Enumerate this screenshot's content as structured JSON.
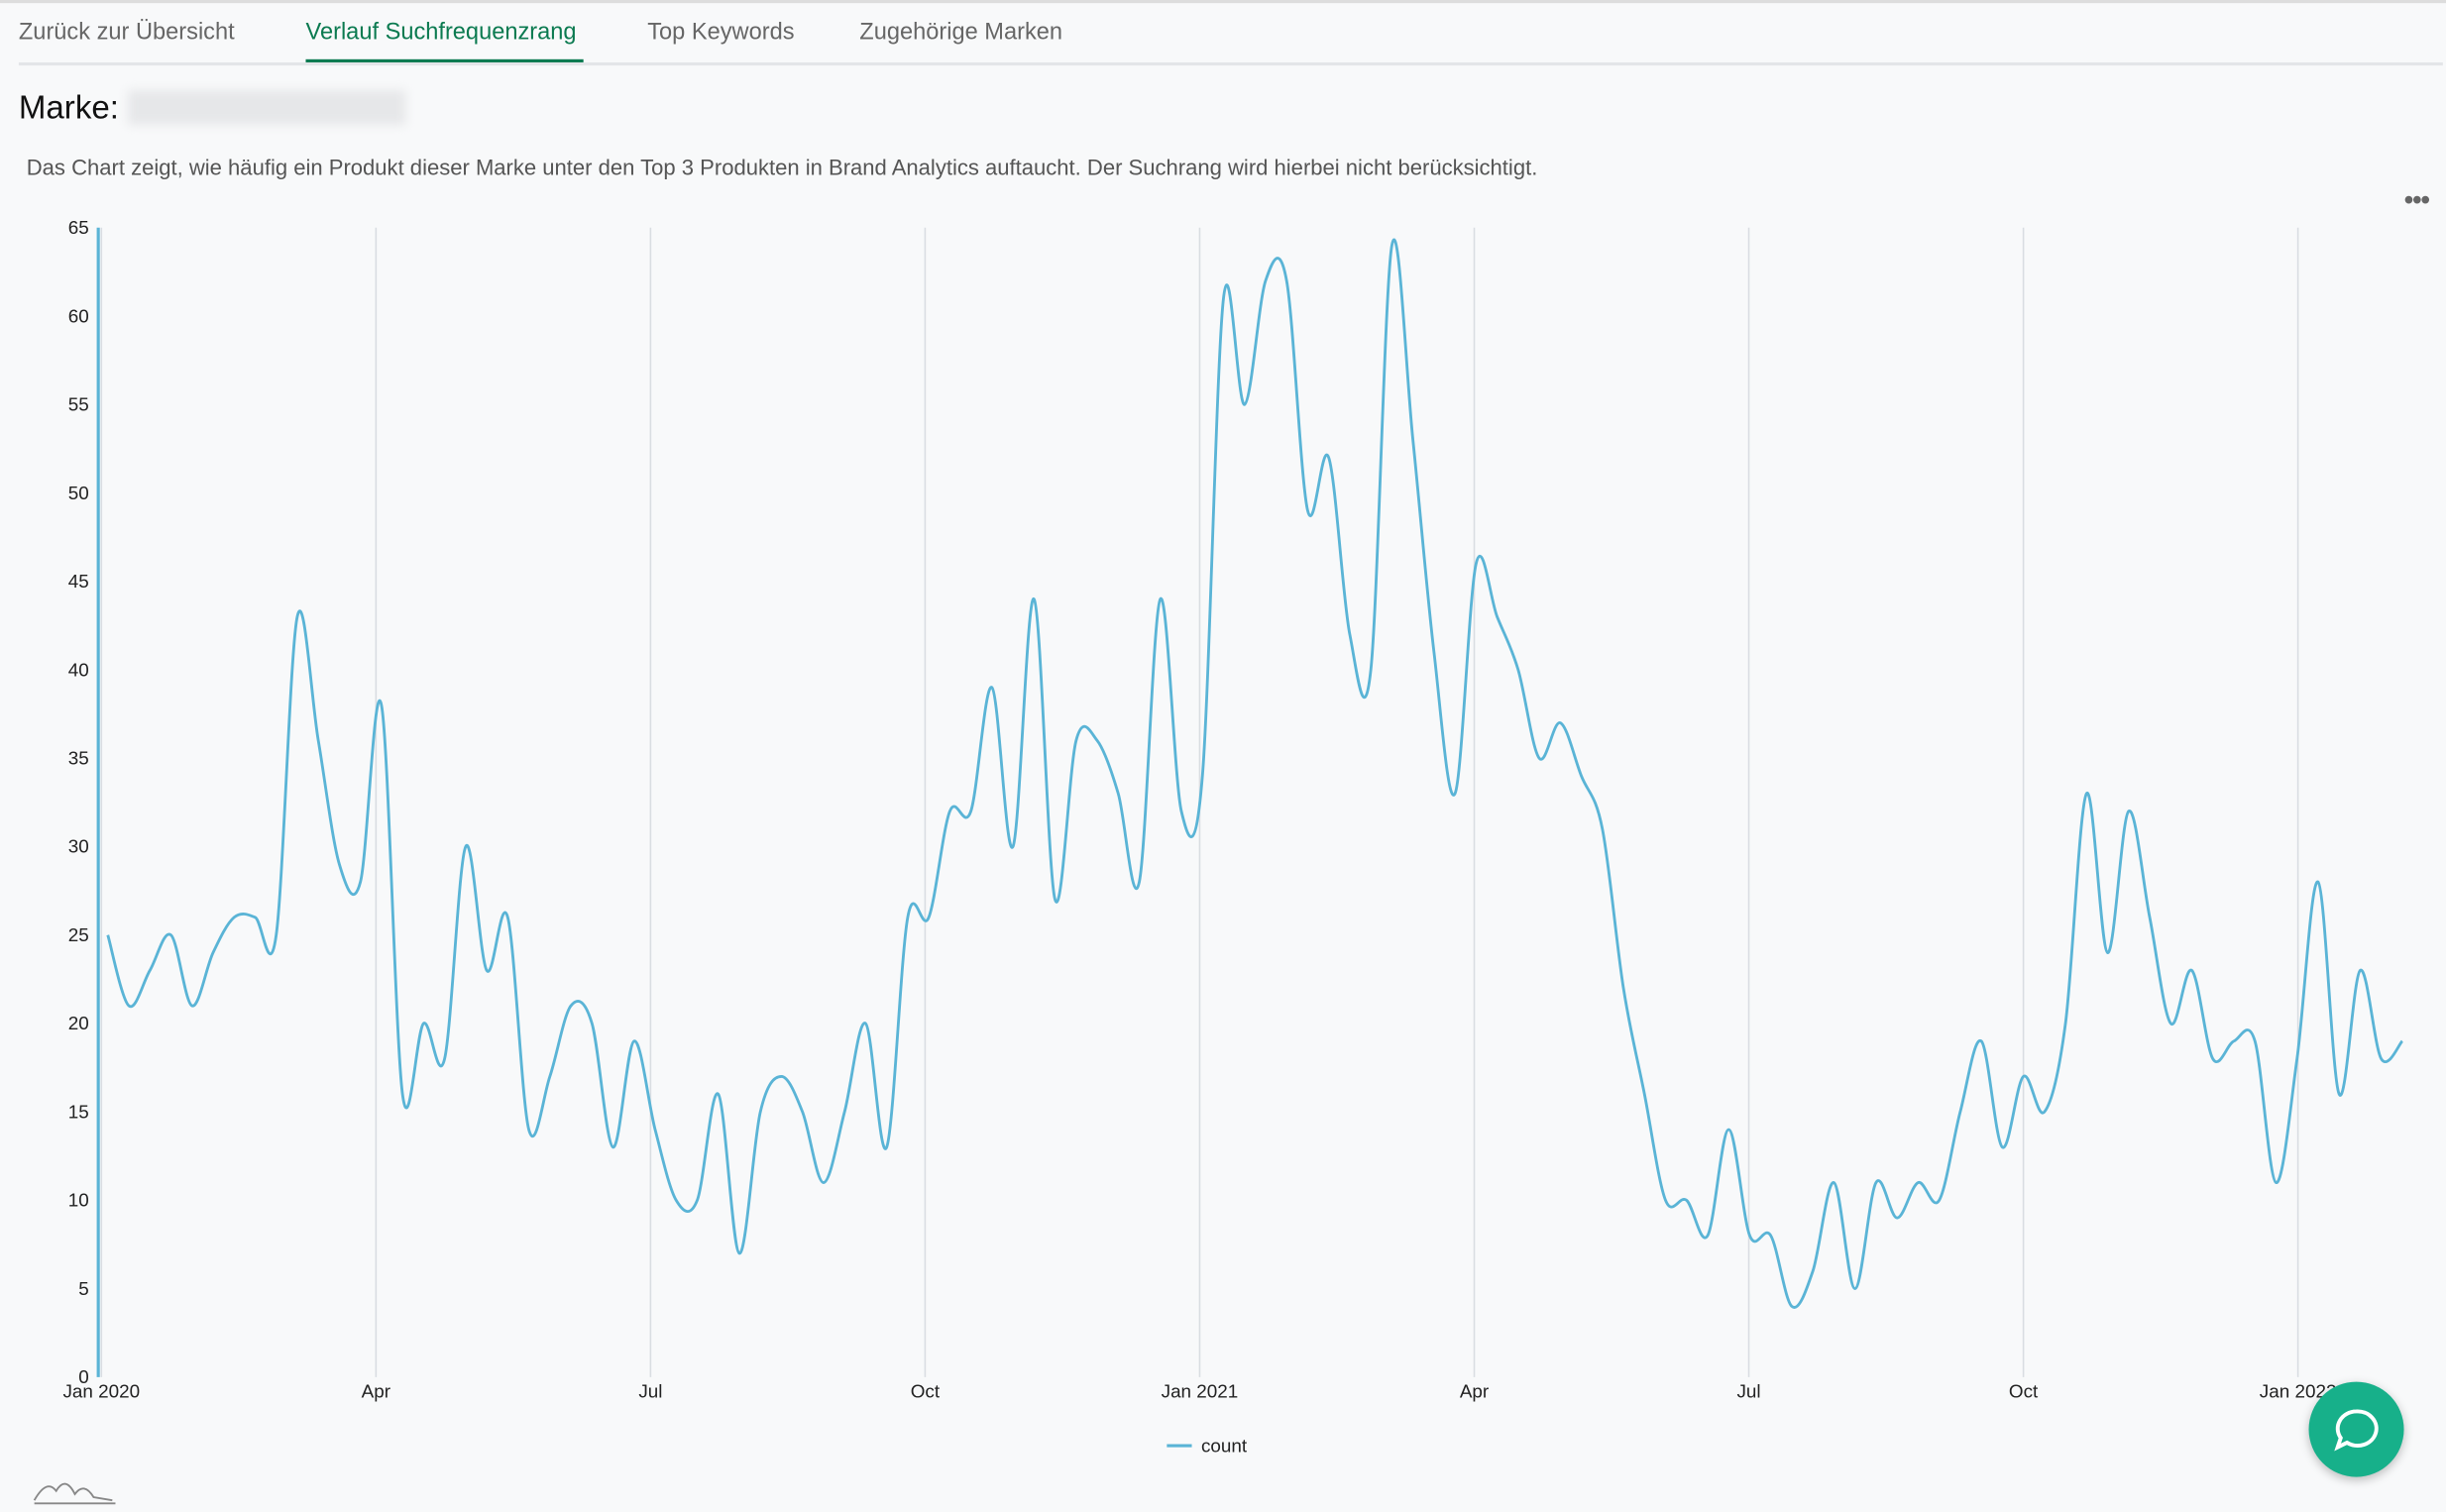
{
  "tabs": [
    "Zurück zur Übersicht",
    "Verlauf Suchfrequenzrang",
    "Top Keywords",
    "Zugehörige Marken"
  ],
  "brand_label": "Marke:",
  "description": "Das Chart zeigt, wie häufig ein Produkt dieser Marke unter den Top 3 Produkten in Brand Analytics auftaucht. Der Suchrang wird hierbei nicht berücksichtigt.",
  "chart_data": {
    "type": "line",
    "x": [
      0.07,
      0.3,
      0.53,
      0.76,
      0.99,
      1.22,
      1.45,
      1.68,
      1.91,
      2.14,
      2.37,
      2.6,
      2.83,
      3.06,
      3.29,
      3.52,
      3.75,
      3.98,
      4.21,
      4.44,
      4.67,
      4.9,
      5.13,
      5.36,
      5.59,
      5.82,
      6.05,
      6.28,
      6.51,
      6.74,
      6.97,
      7.2,
      7.43,
      7.66,
      7.89,
      8.12,
      8.35,
      8.58,
      8.81,
      9.04,
      9.27,
      9.5,
      9.73,
      9.96,
      10.19,
      10.42,
      10.65,
      10.88,
      11.11,
      11.34,
      11.57,
      11.8,
      12.03,
      12.26,
      12.49,
      12.72,
      12.95,
      13.18,
      13.41,
      13.64,
      13.87,
      14.1,
      14.33,
      14.56,
      14.79,
      15.02,
      15.25,
      15.48,
      15.71,
      15.94,
      16.17,
      16.4,
      16.63,
      16.86,
      17.09,
      17.32,
      17.55,
      17.78,
      18.01,
      18.24,
      18.47,
      18.7,
      18.93,
      19.16,
      19.39,
      19.62,
      19.85,
      20.08,
      20.31,
      20.54,
      20.77,
      21.0,
      21.23,
      21.46,
      21.69,
      21.92,
      22.15,
      22.38,
      22.61,
      22.84,
      23.07,
      23.3,
      23.53,
      23.76,
      23.99,
      24.22,
      24.45,
      24.68,
      24.91,
      25.14
    ],
    "series": [
      {
        "name": "count",
        "color": "#5ab4d6",
        "values": [
          25,
          21,
          23,
          25,
          21,
          24,
          26,
          26,
          25,
          43,
          36,
          29,
          28,
          38,
          16,
          20,
          18,
          30,
          23,
          26,
          14,
          17,
          21,
          20,
          13,
          19,
          14,
          10,
          10,
          16,
          7,
          15,
          17,
          15,
          11,
          15,
          20,
          13,
          26,
          26,
          32,
          32,
          39,
          30,
          44,
          27,
          36,
          36,
          33,
          28,
          44,
          32,
          34,
          61,
          55,
          62,
          62,
          49,
          52,
          42,
          40,
          64,
          53,
          41,
          33,
          46,
          43,
          40,
          35,
          37,
          34,
          31,
          22,
          16,
          10,
          10,
          8,
          14,
          8,
          8,
          4,
          6,
          11,
          5,
          11,
          9,
          11,
          10,
          15,
          19,
          13,
          17,
          15,
          20,
          33,
          24,
          32,
          26,
          20,
          23,
          18,
          19,
          19,
          11,
          18,
          28,
          16,
          23,
          18,
          19
        ]
      }
    ],
    "xlim": [
      0,
      25.5
    ],
    "xticks": [
      {
        "value": 0,
        "label": "Jan 2020"
      },
      {
        "value": 3,
        "label": "Apr"
      },
      {
        "value": 6,
        "label": "Jul"
      },
      {
        "value": 9,
        "label": "Oct"
      },
      {
        "value": 12,
        "label": "Jan 2021"
      },
      {
        "value": 15,
        "label": "Apr"
      },
      {
        "value": 18,
        "label": "Jul"
      },
      {
        "value": 21,
        "label": "Oct"
      },
      {
        "value": 24,
        "label": "Jan 2022"
      }
    ],
    "ylim": [
      0,
      65
    ],
    "yticks": [
      0,
      5,
      10,
      15,
      20,
      25,
      30,
      35,
      40,
      45,
      50,
      55,
      60,
      65
    ],
    "grid": true
  }
}
